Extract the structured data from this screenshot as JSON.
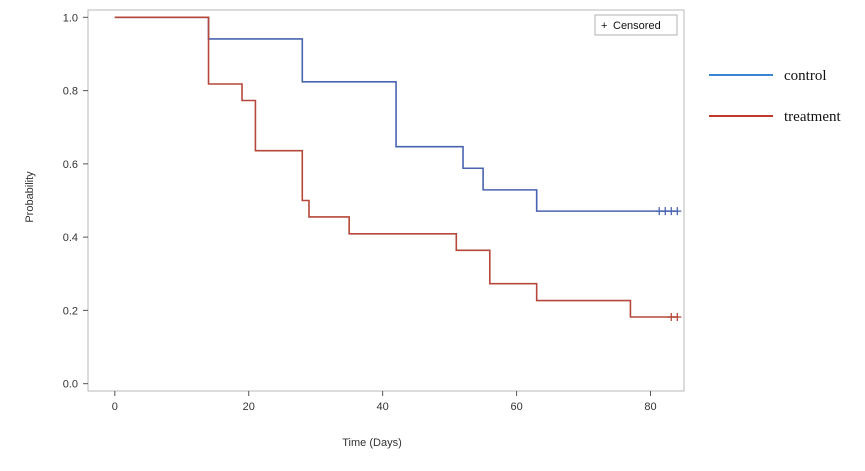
{
  "chart_data": {
    "type": "line",
    "subtype": "kaplan-meier-step",
    "xlabel": "Time (Days)",
    "ylabel": "Probability",
    "xlim": [
      -4,
      85
    ],
    "ylim": [
      -0.02,
      1.02
    ],
    "xticks": [
      0,
      20,
      40,
      60,
      80
    ],
    "yticks": [
      "0.0",
      "0.2",
      "0.4",
      "0.6",
      "0.8",
      "1.0"
    ],
    "grid": false,
    "legend_position": "right",
    "censored_legend": {
      "symbol": "+",
      "label": "Censored",
      "position": "top-right"
    },
    "series": [
      {
        "name": "control",
        "color": "#4a63b0",
        "legend_color": "#3a86d4",
        "steps": [
          [
            0,
            1.0
          ],
          [
            14,
            0.941
          ],
          [
            28,
            0.824
          ],
          [
            42,
            0.647
          ],
          [
            52,
            0.588
          ],
          [
            55,
            0.529
          ],
          [
            63,
            0.471
          ],
          [
            84,
            0.471
          ]
        ],
        "censored": [
          81.3,
          82.2,
          83.1,
          84.0
        ]
      },
      {
        "name": "treatment",
        "color": "#b5483a",
        "legend_color": "#c0392b",
        "steps": [
          [
            0,
            1.0
          ],
          [
            14,
            0.818
          ],
          [
            19,
            0.773
          ],
          [
            21,
            0.636
          ],
          [
            28,
            0.5
          ],
          [
            29,
            0.455
          ],
          [
            35,
            0.409
          ],
          [
            51,
            0.364
          ],
          [
            56,
            0.273
          ],
          [
            63,
            0.227
          ],
          [
            77,
            0.182
          ],
          [
            84,
            0.182
          ]
        ],
        "censored": [
          83.1,
          84.0
        ]
      }
    ]
  }
}
